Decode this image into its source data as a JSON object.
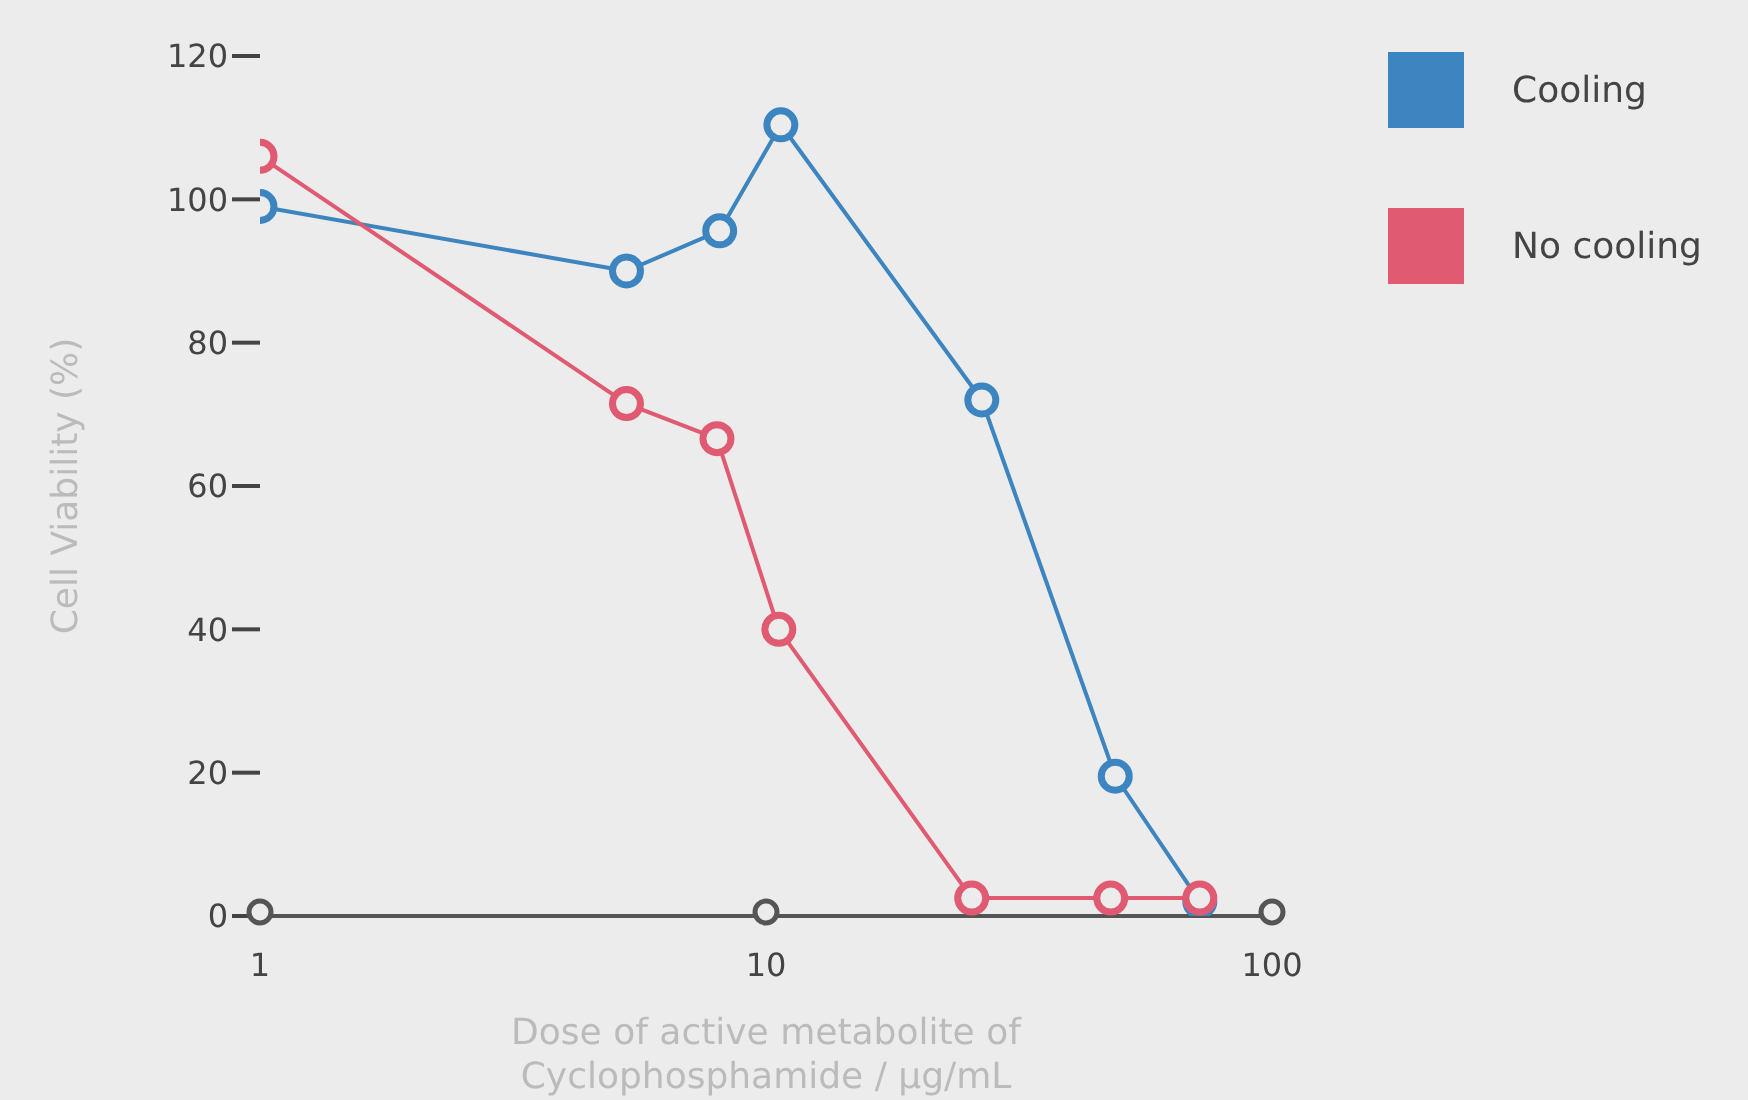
{
  "chart_data": {
    "type": "line",
    "xlabel": "Dose of active metabolite of Cyclophosphamide / μg/mL",
    "ylabel": "Cell Viability (%)",
    "log": "x",
    "xlim": [
      1,
      100
    ],
    "xticks": [
      1,
      10,
      100
    ],
    "ylim": [
      0,
      120
    ],
    "yticks": [
      0,
      20,
      40,
      60,
      80,
      100,
      120
    ],
    "grid": false,
    "legend": "top right",
    "marker": "circle",
    "line_style": "solid",
    "series": [
      {
        "name": "Cooling",
        "color": "#3d85c0",
        "x": [
          1,
          5.3,
          8.1,
          10.7,
          26.7,
          49,
          72
        ],
        "values": [
          99,
          90,
          95.6,
          110.4,
          72,
          19.5,
          2
        ]
      },
      {
        "name": "No cooling",
        "color": "#e05a72",
        "x": [
          1,
          5.3,
          8,
          10.6,
          25.5,
          48,
          72
        ],
        "values": [
          106,
          71.5,
          66.6,
          40,
          2.5,
          2.5,
          2.5
        ]
      }
    ]
  }
}
